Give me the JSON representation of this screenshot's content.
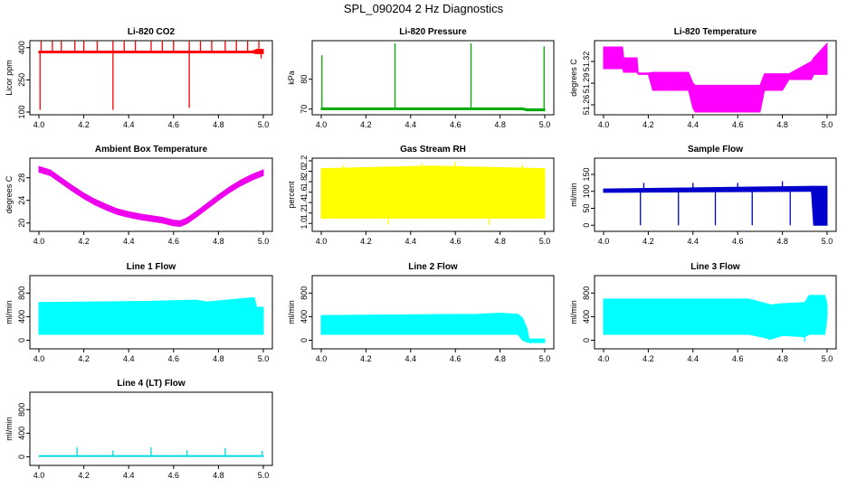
{
  "page_title": "SPL_090204  2 Hz Diagnostics",
  "chart_data": [
    {
      "type": "line",
      "title": "Li-820 CO2",
      "ylabel": "Licor ppm",
      "color": "#ff0000",
      "xlim": [
        4.0,
        5.0
      ],
      "ylim": [
        100,
        420
      ],
      "xticks": [
        "4.0",
        "4.2",
        "4.4",
        "4.6",
        "4.8",
        "5.0"
      ],
      "yticks": [
        "100",
        "250",
        "400"
      ],
      "series": [
        {
          "name": "CO2",
          "band": [
            [
              4.0,
              376,
              384
            ],
            [
              4.5,
              376,
              384
            ],
            [
              4.95,
              376,
              384
            ],
            [
              4.97,
              372,
              392
            ],
            [
              5.0,
              372,
              392
            ]
          ],
          "spikes": [
            [
              4.005,
              110
            ],
            [
              4.01,
              430
            ],
            [
              4.06,
              430
            ],
            [
              4.1,
              430
            ],
            [
              4.16,
              430
            ],
            [
              4.2,
              430
            ],
            [
              4.26,
              430
            ],
            [
              4.33,
              430
            ],
            [
              4.33,
              110
            ],
            [
              4.38,
              430
            ],
            [
              4.43,
              430
            ],
            [
              4.5,
              430
            ],
            [
              4.55,
              430
            ],
            [
              4.6,
              430
            ],
            [
              4.67,
              430
            ],
            [
              4.67,
              120
            ],
            [
              4.72,
              430
            ],
            [
              4.77,
              430
            ],
            [
              4.83,
              430
            ],
            [
              4.88,
              430
            ],
            [
              4.93,
              430
            ],
            [
              4.98,
              430
            ],
            [
              4.99,
              350
            ]
          ]
        }
      ]
    },
    {
      "type": "line",
      "title": "Li-820 Pressure",
      "ylabel": "kPa",
      "color": "#00aa00",
      "xlim": [
        4.0,
        5.0
      ],
      "ylim": [
        69,
        92
      ],
      "xticks": [
        "4.0",
        "4.2",
        "4.4",
        "4.6",
        "4.8",
        "5.0"
      ],
      "yticks": [
        "70",
        "80"
      ],
      "series": [
        {
          "name": "Pressure",
          "band": [
            [
              4.0,
              69.8,
              70.4
            ],
            [
              4.9,
              69.8,
              70.4
            ],
            [
              4.92,
              69.4,
              70.1
            ],
            [
              5.0,
              69.4,
              70.1
            ]
          ],
          "spikes": [
            [
              4.003,
              88
            ],
            [
              4.33,
              92
            ],
            [
              4.67,
              92
            ],
            [
              4.997,
              91
            ]
          ]
        }
      ]
    },
    {
      "type": "line",
      "title": "Li-820 Temperature",
      "ylabel": "degrees C",
      "color": "#ff00ff",
      "xlim": [
        4.0,
        5.0
      ],
      "ylim": [
        51.25,
        51.345
      ],
      "xticks": [
        "4.0",
        "4.2",
        "4.4",
        "4.6",
        "4.8",
        "5.0"
      ],
      "yticks": [
        "51.26",
        "51.29",
        "51.32"
      ],
      "series": [
        {
          "name": "Temperature",
          "band": [
            [
              4.0,
              51.31,
              51.34
            ],
            [
              4.085,
              51.31,
              51.34
            ],
            [
              4.09,
              51.305,
              51.325
            ],
            [
              4.15,
              51.305,
              51.325
            ],
            [
              4.155,
              51.302,
              51.304
            ],
            [
              4.2,
              51.302,
              51.304
            ],
            [
              4.22,
              51.28,
              51.305
            ],
            [
              4.38,
              51.28,
              51.305
            ],
            [
              4.4,
              51.255,
              51.29
            ],
            [
              4.41,
              51.25,
              51.287
            ],
            [
              4.7,
              51.25,
              51.287
            ],
            [
              4.72,
              51.28,
              51.303
            ],
            [
              4.8,
              51.28,
              51.303
            ],
            [
              4.83,
              51.295,
              51.303
            ],
            [
              4.93,
              51.295,
              51.32
            ],
            [
              4.94,
              51.302,
              51.325
            ],
            [
              5.0,
              51.302,
              51.345
            ]
          ],
          "spikes": []
        }
      ]
    },
    {
      "type": "line",
      "title": "Ambient Box Temperature",
      "ylabel": "degrees C",
      "color": "#ee00ee",
      "xlim": [
        4.0,
        5.0
      ],
      "ylim": [
        19,
        31
      ],
      "xticks": [
        "4.0",
        "4.2",
        "4.4",
        "4.6",
        "4.8",
        "5.0"
      ],
      "yticks": [
        "20",
        "24",
        "28"
      ],
      "series": [
        {
          "name": "Ambient",
          "band": [
            [
              4.0,
              29.0,
              30.0
            ],
            [
              4.05,
              28.4,
              29.4
            ],
            [
              4.1,
              27.0,
              28.0
            ],
            [
              4.15,
              25.6,
              26.6
            ],
            [
              4.2,
              24.3,
              25.3
            ],
            [
              4.25,
              23.2,
              24.2
            ],
            [
              4.3,
              22.3,
              23.3
            ],
            [
              4.35,
              21.5,
              22.5
            ],
            [
              4.4,
              21.0,
              22.0
            ],
            [
              4.45,
              20.6,
              21.6
            ],
            [
              4.5,
              20.3,
              21.3
            ],
            [
              4.55,
              20.0,
              21.0
            ],
            [
              4.6,
              19.5,
              20.5
            ],
            [
              4.63,
              19.4,
              20.4
            ],
            [
              4.66,
              19.9,
              20.9
            ],
            [
              4.7,
              21.0,
              22.0
            ],
            [
              4.75,
              22.5,
              23.5
            ],
            [
              4.8,
              24.0,
              25.0
            ],
            [
              4.85,
              25.4,
              26.4
            ],
            [
              4.9,
              26.6,
              27.6
            ],
            [
              4.95,
              27.6,
              28.6
            ],
            [
              5.0,
              28.4,
              29.4
            ]
          ],
          "spikes": []
        }
      ]
    },
    {
      "type": "line",
      "title": "Gas Stream RH",
      "ylabel": "percent",
      "color": "#ffff00",
      "xlim": [
        4.0,
        5.0
      ],
      "ylim": [
        0.9,
        2.2
      ],
      "xticks": [
        "4.0",
        "4.2",
        "4.4",
        "4.6",
        "4.8",
        "5.0"
      ],
      "yticks": [
        "1.0",
        "1.2",
        "1.4",
        "1.6",
        "1.8",
        "2.0",
        "2.2"
      ],
      "series": [
        {
          "name": "RH",
          "band": [
            [
              4.0,
              1.1,
              2.05
            ],
            [
              4.5,
              1.1,
              2.1
            ],
            [
              5.0,
              1.1,
              2.05
            ]
          ],
          "spikes": [
            [
              4.1,
              2.12
            ],
            [
              4.3,
              0.98
            ],
            [
              4.45,
              2.15
            ],
            [
              4.6,
              2.18
            ],
            [
              4.75,
              0.97
            ],
            [
              4.9,
              2.12
            ]
          ]
        }
      ]
    },
    {
      "type": "line",
      "title": "Sample Flow",
      "ylabel": "ml/min",
      "color": "#0000cc",
      "xlim": [
        4.0,
        5.0
      ],
      "ylim": [
        -10,
        190
      ],
      "xticks": [
        "4.0",
        "4.2",
        "4.4",
        "4.6",
        "4.8",
        "5.0"
      ],
      "yticks": [
        "0",
        "50",
        "100",
        "150"
      ],
      "series": [
        {
          "name": "SampleFlow",
          "band": [
            [
              4.0,
              97,
              107
            ],
            [
              4.93,
              100,
              115
            ],
            [
              4.94,
              0,
              115
            ],
            [
              5.0,
              0,
              115
            ]
          ],
          "spikes": [
            [
              4.165,
              0
            ],
            [
              4.335,
              0
            ],
            [
              4.5,
              0
            ],
            [
              4.665,
              0
            ],
            [
              4.835,
              0
            ],
            [
              4.18,
              125
            ],
            [
              4.4,
              125
            ],
            [
              4.6,
              125
            ],
            [
              4.8,
              130
            ]
          ]
        }
      ]
    },
    {
      "type": "line",
      "title": "Line 1 Flow",
      "ylabel": "ml/min",
      "color": "#00ffff",
      "xlim": [
        4.0,
        5.0
      ],
      "ylim": [
        -100,
        1050
      ],
      "xticks": [
        "4.0",
        "4.2",
        "4.4",
        "4.6",
        "4.8",
        "5.0"
      ],
      "yticks": [
        "0",
        "400",
        "800"
      ],
      "series": [
        {
          "name": "Line1",
          "band": [
            [
              4.0,
              100,
              640
            ],
            [
              4.5,
              100,
              660
            ],
            [
              4.7,
              100,
              680
            ],
            [
              4.75,
              100,
              650
            ],
            [
              4.95,
              100,
              720
            ],
            [
              4.96,
              100,
              720
            ],
            [
              4.97,
              100,
              560
            ],
            [
              5.0,
              100,
              560
            ]
          ],
          "spikes": []
        }
      ]
    },
    {
      "type": "line",
      "title": "Line 2 Flow",
      "ylabel": "ml/min",
      "color": "#00ffff",
      "xlim": [
        4.0,
        5.0
      ],
      "ylim": [
        -100,
        1050
      ],
      "xticks": [
        "4.0",
        "4.2",
        "4.4",
        "4.6",
        "4.8",
        "5.0"
      ],
      "yticks": [
        "0",
        "400",
        "800"
      ],
      "series": [
        {
          "name": "Line2",
          "band": [
            [
              4.0,
              100,
              420
            ],
            [
              4.7,
              100,
              440
            ],
            [
              4.8,
              100,
              460
            ],
            [
              4.88,
              100,
              440
            ],
            [
              4.9,
              0,
              380
            ],
            [
              4.92,
              -30,
              200
            ],
            [
              4.93,
              -40,
              20
            ],
            [
              5.0,
              -40,
              20
            ]
          ],
          "spikes": []
        }
      ]
    },
    {
      "type": "line",
      "title": "Line 3 Flow",
      "ylabel": "ml/min",
      "color": "#00ffff",
      "xlim": [
        4.0,
        5.0
      ],
      "ylim": [
        -100,
        1050
      ],
      "xticks": [
        "4.0",
        "4.2",
        "4.4",
        "4.6",
        "4.8",
        "5.0"
      ],
      "yticks": [
        "0",
        "400",
        "800"
      ],
      "series": [
        {
          "name": "Line3",
          "band": [
            [
              4.0,
              100,
              700
            ],
            [
              4.65,
              100,
              700
            ],
            [
              4.7,
              60,
              650
            ],
            [
              4.75,
              20,
              600
            ],
            [
              4.8,
              80,
              620
            ],
            [
              4.9,
              60,
              640
            ],
            [
              4.92,
              100,
              760
            ],
            [
              4.99,
              100,
              760
            ],
            [
              5.0,
              400,
              600
            ]
          ],
          "spikes": [
            [
              4.74,
              0
            ],
            [
              4.9,
              -30
            ]
          ]
        }
      ]
    },
    {
      "type": "line",
      "title": "Line 4 (LT) Flow",
      "ylabel": "ml/min",
      "color": "#00dddd",
      "xlim": [
        4.0,
        5.0
      ],
      "ylim": [
        -100,
        1050
      ],
      "xticks": [
        "4.0",
        "4.2",
        "4.4",
        "4.6",
        "4.8",
        "5.0"
      ],
      "yticks": [
        "0",
        "400",
        "800"
      ],
      "series": [
        {
          "name": "Line4",
          "band": [
            [
              4.0,
              5,
              20
            ],
            [
              5.0,
              5,
              20
            ]
          ],
          "spikes": [
            [
              4.17,
              160
            ],
            [
              4.33,
              110
            ],
            [
              4.5,
              160
            ],
            [
              4.66,
              110
            ],
            [
              4.83,
              150
            ],
            [
              4.995,
              100
            ]
          ]
        }
      ]
    }
  ]
}
